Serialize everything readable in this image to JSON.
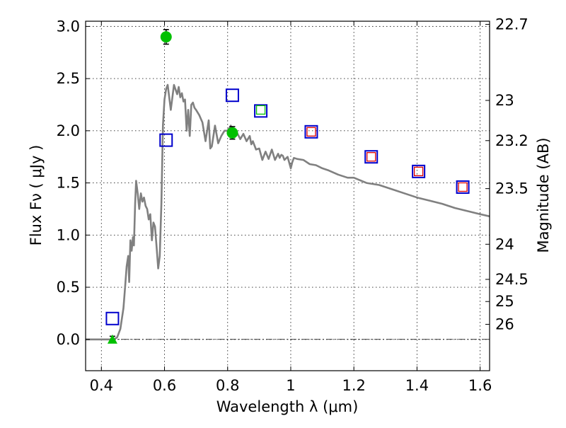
{
  "chart_data": {
    "type": "scatter",
    "title": "",
    "xlabel": "Wavelength  λ (μm)",
    "ylabel": "Flux  Fν  ( μJy )",
    "y2label": "Magnitude (AB)",
    "xlim": [
      0.35,
      1.63
    ],
    "ylim": [
      -0.3,
      3.05
    ],
    "grid": true,
    "legend": "none",
    "xticks": [
      0.4,
      0.6,
      0.8,
      1.0,
      1.2,
      1.4,
      1.6
    ],
    "xtick_labels": [
      "0.4",
      "0.6",
      "0.8",
      "1",
      "1.2",
      "1.4",
      "1.6"
    ],
    "yticks": [
      0.0,
      0.5,
      1.0,
      1.5,
      2.0,
      2.5,
      3.0
    ],
    "ytick_labels": [
      "0.0",
      "0.5",
      "1.0",
      "1.5",
      "2.0",
      "2.5",
      "3.0"
    ],
    "y2ticks": [
      {
        "label": "22.7",
        "mag": 22.7
      },
      {
        "label": "23",
        "mag": 23.0
      },
      {
        "label": "23.2",
        "mag": 23.2
      },
      {
        "label": "23.5",
        "mag": 23.5
      },
      {
        "label": "24",
        "mag": 24.0
      },
      {
        "label": "24.5",
        "mag": 24.5
      },
      {
        "label": "25",
        "mag": 25.0
      },
      {
        "label": "26",
        "mag": 26.0
      }
    ],
    "series": [
      {
        "kind": "model_sed_line",
        "color": "#808080",
        "x": [
          0.35,
          0.43,
          0.44,
          0.45,
          0.46,
          0.47,
          0.475,
          0.48,
          0.485,
          0.488,
          0.492,
          0.496,
          0.5,
          0.503,
          0.507,
          0.51,
          0.515,
          0.52,
          0.525,
          0.53,
          0.535,
          0.54,
          0.545,
          0.55,
          0.555,
          0.56,
          0.565,
          0.57,
          0.575,
          0.58,
          0.585,
          0.59,
          0.595,
          0.6,
          0.605,
          0.61,
          0.62,
          0.63,
          0.64,
          0.645,
          0.65,
          0.655,
          0.66,
          0.665,
          0.67,
          0.675,
          0.68,
          0.685,
          0.69,
          0.695,
          0.7,
          0.71,
          0.72,
          0.73,
          0.74,
          0.745,
          0.75,
          0.76,
          0.77,
          0.78,
          0.79,
          0.8,
          0.81,
          0.82,
          0.83,
          0.84,
          0.85,
          0.86,
          0.87,
          0.875,
          0.88,
          0.89,
          0.9,
          0.91,
          0.92,
          0.93,
          0.94,
          0.95,
          0.96,
          0.965,
          0.97,
          0.975,
          0.98,
          0.99,
          1.0,
          1.005,
          1.01,
          1.02,
          1.04,
          1.06,
          1.08,
          1.1,
          1.12,
          1.15,
          1.18,
          1.2,
          1.24,
          1.28,
          1.32,
          1.36,
          1.4,
          1.44,
          1.48,
          1.52,
          1.56,
          1.6,
          1.63
        ],
        "y": [
          0.0,
          0.0,
          0.0,
          0.02,
          0.1,
          0.3,
          0.5,
          0.7,
          0.8,
          0.55,
          0.95,
          0.85,
          0.98,
          0.9,
          1.3,
          1.52,
          1.4,
          1.25,
          1.4,
          1.32,
          1.36,
          1.28,
          1.25,
          1.15,
          1.2,
          0.95,
          1.12,
          1.08,
          0.88,
          0.68,
          0.8,
          1.3,
          2.05,
          2.3,
          2.4,
          2.44,
          2.2,
          2.44,
          2.35,
          2.42,
          2.32,
          2.36,
          2.28,
          2.3,
          2.0,
          2.2,
          1.95,
          2.25,
          2.27,
          2.22,
          2.2,
          2.15,
          2.08,
          1.9,
          2.1,
          1.83,
          1.85,
          2.05,
          1.88,
          1.95,
          2.0,
          2.0,
          2.05,
          1.96,
          1.98,
          1.92,
          1.97,
          1.9,
          1.95,
          1.87,
          1.9,
          1.82,
          1.83,
          1.72,
          1.8,
          1.73,
          1.82,
          1.72,
          1.78,
          1.74,
          1.77,
          1.76,
          1.72,
          1.75,
          1.64,
          1.7,
          1.74,
          1.73,
          1.72,
          1.68,
          1.67,
          1.64,
          1.62,
          1.58,
          1.55,
          1.55,
          1.5,
          1.48,
          1.44,
          1.4,
          1.36,
          1.33,
          1.3,
          1.26,
          1.23,
          1.2,
          1.18
        ]
      },
      {
        "kind": "green_circle_points",
        "color": "#00c000",
        "points": [
          {
            "x": 0.605,
            "y": 2.9,
            "err": 0.07
          },
          {
            "x": 0.815,
            "y": 1.98,
            "err": 0.06
          }
        ]
      },
      {
        "kind": "green_triangle_point",
        "color": "#00c000",
        "points": [
          {
            "x": 0.435,
            "y": 0.0,
            "err": 0.03
          }
        ]
      },
      {
        "kind": "model_photometry_blue_squares",
        "color": "#0000cc",
        "points": [
          {
            "x": 0.435,
            "y": 0.2
          },
          {
            "x": 0.605,
            "y": 1.91
          },
          {
            "x": 0.815,
            "y": 2.34
          },
          {
            "x": 0.905,
            "y": 2.19
          },
          {
            "x": 1.065,
            "y": 1.99
          },
          {
            "x": 1.255,
            "y": 1.75
          },
          {
            "x": 1.405,
            "y": 1.61
          },
          {
            "x": 1.545,
            "y": 1.46
          }
        ]
      },
      {
        "kind": "inner_green_squares",
        "color": "#00c000",
        "points": [
          {
            "x": 0.905,
            "y": 2.2
          }
        ]
      },
      {
        "kind": "inner_red_squares",
        "color": "#dd0000",
        "points": [
          {
            "x": 1.065,
            "y": 1.99
          },
          {
            "x": 1.255,
            "y": 1.75
          },
          {
            "x": 1.405,
            "y": 1.61
          },
          {
            "x": 1.545,
            "y": 1.46
          }
        ]
      }
    ]
  }
}
